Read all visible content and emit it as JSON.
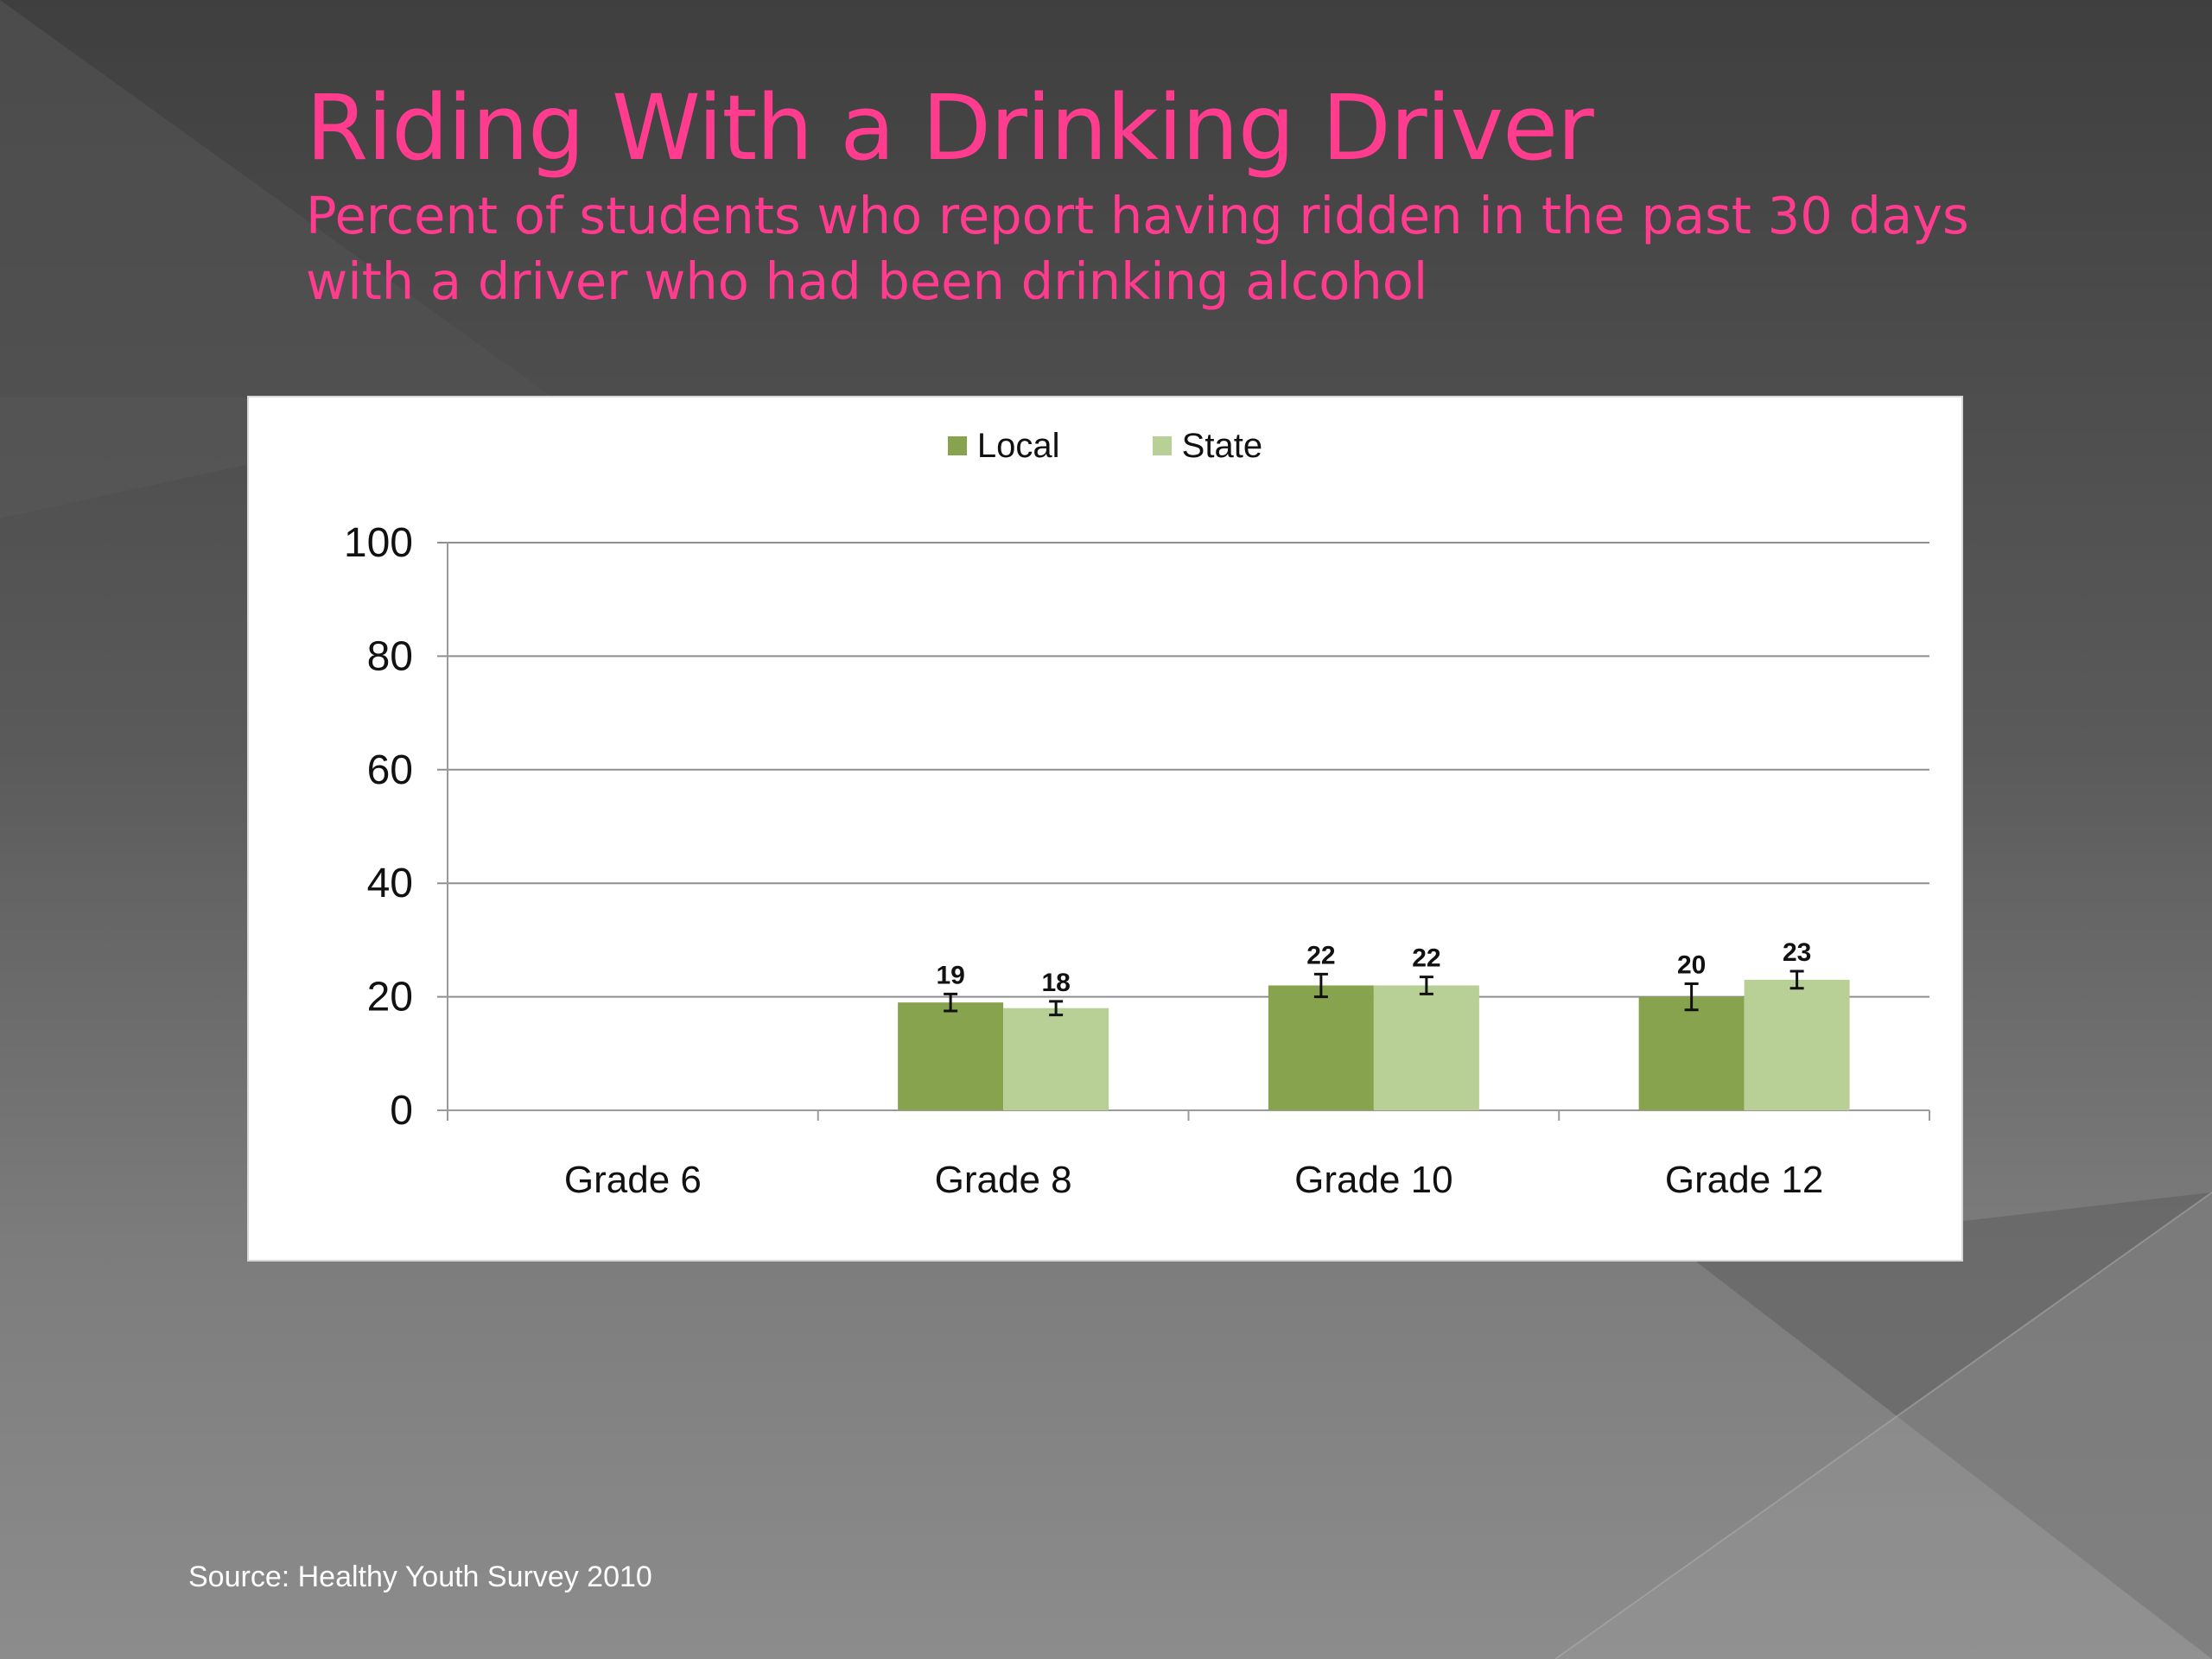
{
  "slide": {
    "title": "Riding With a Drinking Driver",
    "subtitle": "Percent of students who report having ridden in the past 30 days with a driver who had been drinking alcohol",
    "source": "Source: Healthy Youth Survey 2010"
  },
  "colors": {
    "title": "#ff3c8e",
    "local": "#87a34d",
    "state": "#b8cf95"
  },
  "chart_data": {
    "type": "bar",
    "categories": [
      "Grade 6",
      "Grade 8",
      "Grade 10",
      "Grade 12"
    ],
    "series": [
      {
        "name": "Local",
        "values": [
          null,
          19,
          22,
          20
        ],
        "error": [
          null,
          1.5,
          2.0,
          2.3
        ]
      },
      {
        "name": "State",
        "values": [
          null,
          18,
          22,
          23
        ],
        "error": [
          null,
          1.2,
          1.5,
          1.5
        ]
      }
    ],
    "data_labels": [
      [
        null,
        "19",
        "22",
        "20"
      ],
      [
        null,
        "18",
        "22",
        "23"
      ]
    ],
    "ylim": [
      0,
      100
    ],
    "yticks": [
      0,
      20,
      40,
      60,
      80,
      100
    ],
    "legend": "top-center",
    "grid": true
  }
}
